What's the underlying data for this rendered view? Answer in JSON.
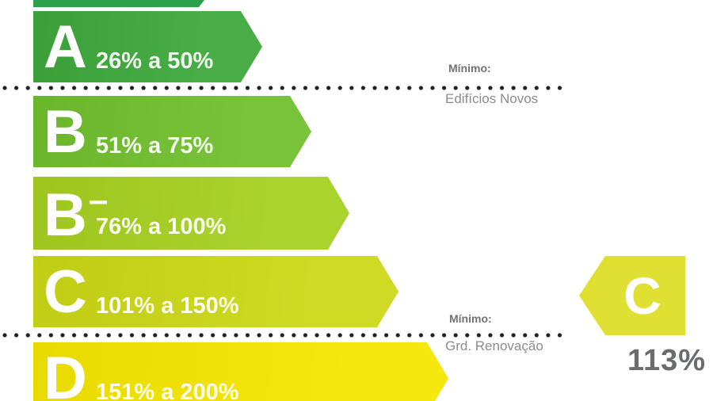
{
  "chart_data": {
    "type": "bar",
    "title": "Energy efficiency rating scale (Portuguese energy certificate)",
    "categories": [
      "A",
      "B",
      "B-",
      "C",
      "D"
    ],
    "ranges": [
      "26% a 50%",
      "51% a 75%",
      "76% a 100%",
      "101% a 150%",
      "151% a 200%"
    ],
    "range_values": [
      [
        26,
        50
      ],
      [
        51,
        75
      ],
      [
        76,
        100
      ],
      [
        101,
        150
      ],
      [
        151,
        200
      ]
    ],
    "annotations": [
      {
        "text": "Mínimo: Edifícios Novos",
        "position": "below class A"
      },
      {
        "text": "Mínimo: Grd. Renovação",
        "position": "below class C"
      }
    ],
    "result": {
      "class": "C",
      "value_percent": 113
    },
    "layout": "horizontal arrow bars, increasing length downward; partial bar above A cut off at top; class D bar cut off at bottom"
  },
  "colors": {
    "bar_top_partial": "#2aa14c",
    "bar_a": "#3ea83c",
    "bar_b": "#70bf2d",
    "bar_b_minus": "#a6d020",
    "bar_c": "#cbd815",
    "bar_d": "#f5e600",
    "result_arrow": "#dfe032",
    "label_gray_bold": "#717275",
    "label_gray": "#8b8c8e",
    "dot": "#212121"
  },
  "scale": {
    "rows": [
      {
        "letter": "A",
        "range": "26% a 50%"
      },
      {
        "letter": "B",
        "range": "51% a 75%"
      },
      {
        "letter": "B",
        "superscript": "–",
        "range": "76% a 100%"
      },
      {
        "letter": "C",
        "range": "101% a 150%"
      },
      {
        "letter": "D",
        "range": "151% a 200%"
      }
    ]
  },
  "thresholds": [
    {
      "title": "Mínimo:",
      "subtitle": "Edifícios Novos"
    },
    {
      "title": "Mínimo:",
      "subtitle": "Grd. Renovação"
    }
  ],
  "result": {
    "letter": "C",
    "value": "113%"
  }
}
